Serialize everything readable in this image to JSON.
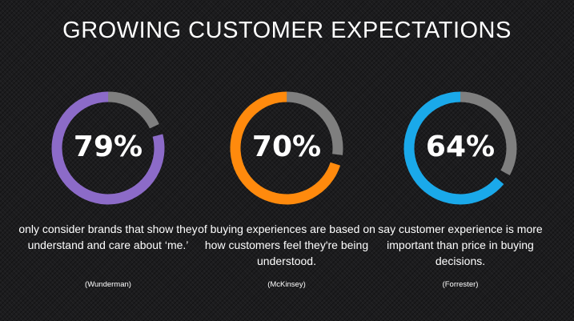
{
  "title": "GROWING CUSTOMER EXPECTATIONS",
  "chart_data": {
    "type": "donut",
    "remainder_color": "#7f7f7f",
    "stats": [
      {
        "value": 79,
        "label": "79%",
        "description": "only consider brands that show they understand and care about ‘me.’",
        "source": "(Wunderman)",
        "color": "#8c6bc8"
      },
      {
        "value": 70,
        "label": "70%",
        "description": "of buying experiences are based on how customers feel they're being understood.",
        "source": "(McKinsey)",
        "color": "#ff8a0d"
      },
      {
        "value": 64,
        "label": "64%",
        "description": "say customer experience is more important than price in buying decisions.",
        "source": "(Forrester)",
        "color": "#1aa9ea"
      }
    ]
  }
}
